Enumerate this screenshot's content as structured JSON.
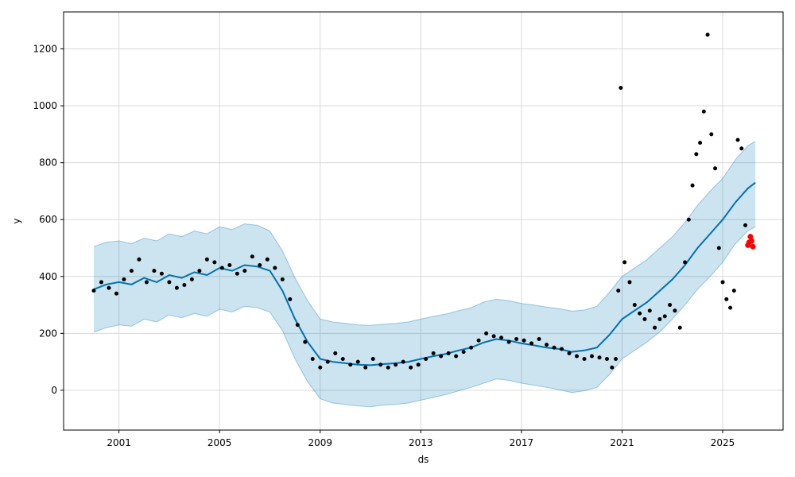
{
  "chart_data": {
    "type": "scatter",
    "xlabel": "ds",
    "ylabel": "y",
    "xlim": [
      1998.8,
      2027.4
    ],
    "ylim": [
      -140,
      1330
    ],
    "grid": true,
    "x_ticks": [
      2001,
      2005,
      2009,
      2013,
      2017,
      2021,
      2025
    ],
    "x_tick_labels": [
      "2001",
      "2005",
      "2009",
      "2013",
      "2017",
      "2021",
      "2025"
    ],
    "y_ticks": [
      0,
      200,
      400,
      600,
      800,
      1000,
      1200
    ],
    "y_tick_labels": [
      "0",
      "200",
      "400",
      "600",
      "800",
      "1000",
      "1200"
    ],
    "colors": {
      "observed": "#000000",
      "forecast": "#0072B2",
      "interval_fill": "#0072B2",
      "recent": "#ff0000",
      "grid": "#d9d9d9"
    },
    "series": [
      {
        "role": "forecast",
        "x": [
          2000.0,
          2000.5,
          2001.0,
          2001.5,
          2002.0,
          2002.5,
          2003.0,
          2003.5,
          2004.0,
          2004.5,
          2005.0,
          2005.5,
          2006.0,
          2006.5,
          2007.0,
          2007.5,
          2008.0,
          2008.5,
          2009.0,
          2009.5,
          2010.0,
          2010.5,
          2011.0,
          2011.5,
          2012.0,
          2012.5,
          2013.0,
          2013.5,
          2014.0,
          2014.5,
          2015.0,
          2015.5,
          2016.0,
          2016.5,
          2017.0,
          2017.5,
          2018.0,
          2018.5,
          2019.0,
          2019.5,
          2020.0,
          2020.5,
          2021.0,
          2021.5,
          2022.0,
          2022.5,
          2023.0,
          2023.5,
          2024.0,
          2024.5,
          2025.0,
          2025.5,
          2026.0,
          2026.3
        ],
        "y": [
          355,
          372,
          380,
          372,
          395,
          380,
          405,
          395,
          415,
          405,
          430,
          420,
          440,
          435,
          420,
          350,
          250,
          170,
          110,
          100,
          95,
          90,
          88,
          92,
          95,
          100,
          110,
          120,
          128,
          140,
          150,
          168,
          180,
          175,
          165,
          158,
          150,
          145,
          135,
          140,
          150,
          195,
          250,
          280,
          310,
          350,
          390,
          440,
          500,
          550,
          600,
          660,
          710,
          730
        ]
      },
      {
        "role": "interval-upper",
        "x": [
          2000.0,
          2000.5,
          2001.0,
          2001.5,
          2002.0,
          2002.5,
          2003.0,
          2003.5,
          2004.0,
          2004.5,
          2005.0,
          2005.5,
          2006.0,
          2006.5,
          2007.0,
          2007.5,
          2008.0,
          2008.5,
          2009.0,
          2009.5,
          2010.0,
          2010.5,
          2011.0,
          2011.5,
          2012.0,
          2012.5,
          2013.0,
          2013.5,
          2014.0,
          2014.5,
          2015.0,
          2015.5,
          2016.0,
          2016.5,
          2017.0,
          2017.5,
          2018.0,
          2018.5,
          2019.0,
          2019.5,
          2020.0,
          2020.5,
          2021.0,
          2021.5,
          2022.0,
          2022.5,
          2023.0,
          2023.5,
          2024.0,
          2024.5,
          2025.0,
          2025.5,
          2026.0,
          2026.3
        ],
        "y": [
          505,
          520,
          525,
          515,
          535,
          525,
          550,
          540,
          560,
          550,
          575,
          565,
          585,
          580,
          560,
          490,
          395,
          315,
          250,
          240,
          235,
          230,
          228,
          232,
          235,
          240,
          250,
          260,
          268,
          280,
          290,
          310,
          320,
          315,
          305,
          300,
          292,
          287,
          278,
          282,
          295,
          345,
          400,
          430,
          460,
          500,
          540,
          590,
          650,
          700,
          745,
          810,
          860,
          875
        ]
      },
      {
        "role": "interval-lower",
        "x": [
          2000.0,
          2000.5,
          2001.0,
          2001.5,
          2002.0,
          2002.5,
          2003.0,
          2003.5,
          2004.0,
          2004.5,
          2005.0,
          2005.5,
          2006.0,
          2006.5,
          2007.0,
          2007.5,
          2008.0,
          2008.5,
          2009.0,
          2009.5,
          2010.0,
          2010.5,
          2011.0,
          2011.5,
          2012.0,
          2012.5,
          2013.0,
          2013.5,
          2014.0,
          2014.5,
          2015.0,
          2015.5,
          2016.0,
          2016.5,
          2017.0,
          2017.5,
          2018.0,
          2018.5,
          2019.0,
          2019.5,
          2020.0,
          2020.5,
          2021.0,
          2021.5,
          2022.0,
          2022.5,
          2023.0,
          2023.5,
          2024.0,
          2024.5,
          2025.0,
          2025.5,
          2026.0,
          2026.3
        ],
        "y": [
          205,
          220,
          230,
          225,
          250,
          240,
          265,
          255,
          270,
          260,
          285,
          275,
          295,
          290,
          275,
          210,
          110,
          30,
          -30,
          -45,
          -50,
          -55,
          -58,
          -52,
          -50,
          -45,
          -35,
          -25,
          -15,
          -2,
          10,
          25,
          40,
          35,
          25,
          18,
          10,
          2,
          -8,
          -2,
          10,
          55,
          110,
          140,
          170,
          205,
          250,
          300,
          355,
          400,
          450,
          515,
          560,
          575
        ]
      },
      {
        "role": "observed",
        "x": [
          2000.0,
          2000.3,
          2000.6,
          2000.9,
          2001.2,
          2001.5,
          2001.8,
          2002.1,
          2002.4,
          2002.7,
          2003.0,
          2003.3,
          2003.6,
          2003.9,
          2004.2,
          2004.5,
          2004.8,
          2005.1,
          2005.4,
          2005.7,
          2006.0,
          2006.3,
          2006.6,
          2006.9,
          2007.2,
          2007.5,
          2007.8,
          2008.1,
          2008.4,
          2008.7,
          2009.0,
          2009.3,
          2009.6,
          2009.9,
          2010.2,
          2010.5,
          2010.8,
          2011.1,
          2011.4,
          2011.7,
          2012.0,
          2012.3,
          2012.6,
          2012.9,
          2013.2,
          2013.5,
          2013.8,
          2014.1,
          2014.4,
          2014.7,
          2015.0,
          2015.3,
          2015.6,
          2015.9,
          2016.2,
          2016.5,
          2016.8,
          2017.1,
          2017.4,
          2017.7,
          2018.0,
          2018.3,
          2018.6,
          2018.9,
          2019.2,
          2019.5,
          2019.8,
          2020.1,
          2020.4,
          2020.6,
          2020.75,
          2020.85,
          2020.95,
          2021.1,
          2021.3,
          2021.5,
          2021.7,
          2021.9,
          2022.1,
          2022.3,
          2022.5,
          2022.7,
          2022.9,
          2023.1,
          2023.3,
          2023.5,
          2023.65,
          2023.8,
          2023.95,
          2024.1,
          2024.25,
          2024.4,
          2024.55,
          2024.7,
          2024.85,
          2025.0,
          2025.15,
          2025.3,
          2025.45,
          2025.6,
          2025.75,
          2025.9
        ],
        "y": [
          350,
          380,
          360,
          340,
          390,
          420,
          460,
          380,
          420,
          410,
          380,
          360,
          370,
          390,
          420,
          460,
          450,
          430,
          440,
          410,
          420,
          470,
          440,
          460,
          430,
          390,
          320,
          230,
          170,
          110,
          80,
          100,
          130,
          110,
          90,
          100,
          80,
          110,
          90,
          80,
          90,
          100,
          80,
          90,
          110,
          130,
          120,
          130,
          120,
          135,
          150,
          175,
          200,
          190,
          185,
          170,
          180,
          175,
          165,
          180,
          160,
          150,
          145,
          130,
          120,
          110,
          120,
          115,
          110,
          80,
          110,
          350,
          1063,
          450,
          380,
          300,
          270,
          250,
          280,
          220,
          250,
          260,
          300,
          280,
          220,
          450,
          600,
          720,
          830,
          870,
          980,
          1250,
          900,
          780,
          500,
          380,
          320,
          290,
          350,
          880,
          850,
          580
        ]
      },
      {
        "role": "recent",
        "x": [
          2026.0,
          2026.05,
          2026.1,
          2026.15,
          2026.2
        ],
        "y": [
          510,
          520,
          540,
          525,
          505
        ]
      }
    ]
  }
}
